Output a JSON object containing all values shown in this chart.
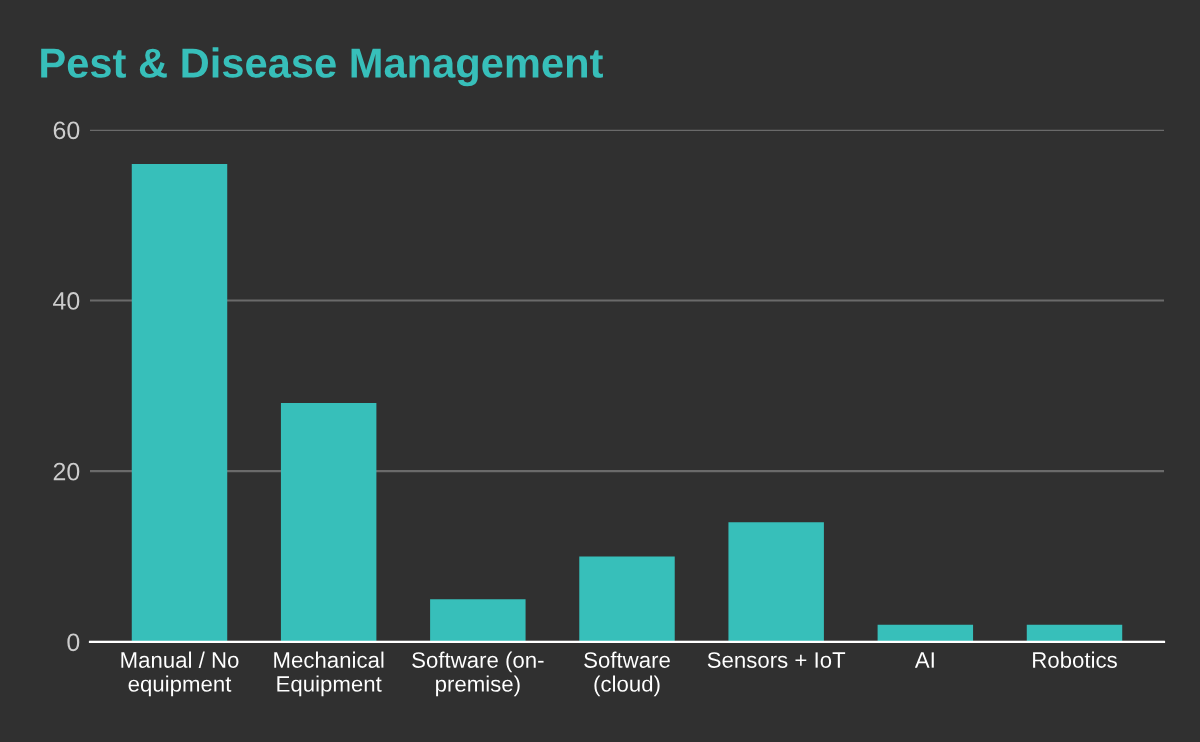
{
  "chart_data": {
    "type": "bar",
    "title": "Pest & Disease Management",
    "categories": [
      "Manual / No\nequipment",
      "Mechanical\nEquipment",
      "Software (on-\npremise)",
      "Software\n(cloud)",
      "Sensors + IoT",
      "AI",
      "Robotics"
    ],
    "values": [
      56,
      28,
      5,
      10,
      14,
      2,
      2
    ],
    "color": "#37bfba",
    "ylim": [
      0,
      60
    ],
    "yticks": [
      0,
      20,
      40,
      60
    ],
    "grid": "y"
  }
}
